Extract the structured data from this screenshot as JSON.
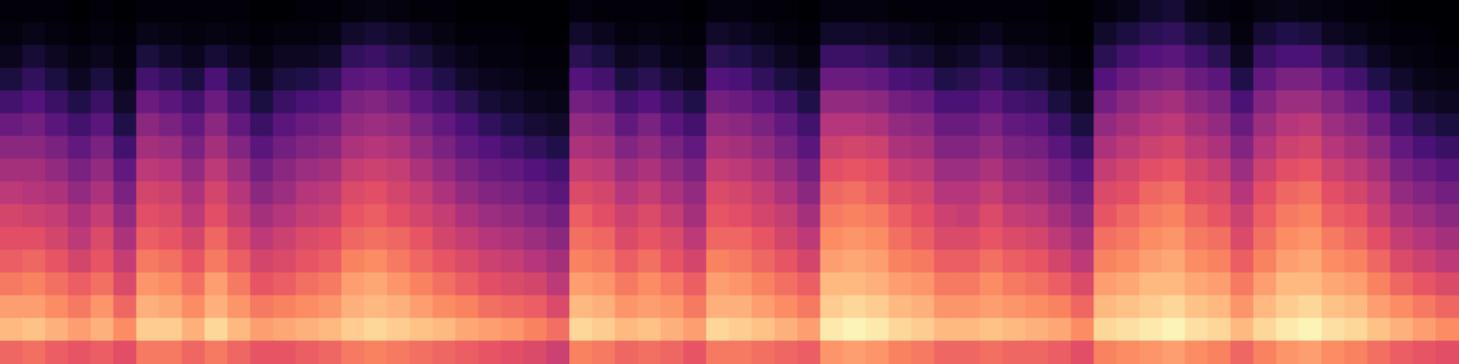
{
  "chart_data": {
    "type": "heatmap",
    "tick_labels": false,
    "zlim": [
      0,
      100
    ],
    "cells": [
      [
        68,
        86,
        80,
        72,
        66,
        62,
        58,
        52,
        46,
        40,
        32,
        22,
        12,
        5,
        2,
        1
      ],
      [
        70,
        88,
        80,
        74,
        68,
        62,
        56,
        50,
        46,
        40,
        34,
        26,
        18,
        10,
        4,
        1
      ],
      [
        66,
        84,
        76,
        70,
        64,
        58,
        54,
        48,
        42,
        36,
        28,
        20,
        12,
        6,
        2,
        1
      ],
      [
        64,
        80,
        72,
        66,
        58,
        52,
        48,
        42,
        36,
        30,
        22,
        14,
        6,
        3,
        1,
        0
      ],
      [
        66,
        84,
        78,
        70,
        64,
        60,
        54,
        48,
        42,
        36,
        28,
        20,
        12,
        5,
        2,
        1
      ],
      [
        62,
        76,
        68,
        60,
        54,
        48,
        42,
        36,
        30,
        22,
        14,
        8,
        4,
        2,
        1,
        0
      ],
      [
        72,
        90,
        84,
        78,
        72,
        66,
        62,
        58,
        52,
        46,
        40,
        32,
        22,
        12,
        4,
        1
      ],
      [
        72,
        90,
        82,
        76,
        70,
        64,
        60,
        56,
        50,
        44,
        36,
        28,
        18,
        8,
        3,
        1
      ],
      [
        68,
        84,
        76,
        70,
        64,
        58,
        52,
        48,
        42,
        36,
        30,
        22,
        12,
        5,
        2,
        1
      ],
      [
        72,
        92,
        84,
        80,
        72,
        68,
        62,
        58,
        52,
        46,
        40,
        32,
        24,
        10,
        3,
        1
      ],
      [
        68,
        86,
        78,
        72,
        66,
        60,
        54,
        50,
        44,
        38,
        30,
        22,
        14,
        6,
        2,
        1
      ],
      [
        64,
        80,
        72,
        64,
        58,
        52,
        46,
        40,
        34,
        28,
        20,
        12,
        6,
        3,
        1,
        0
      ],
      [
        64,
        82,
        74,
        66,
        60,
        56,
        50,
        44,
        40,
        34,
        28,
        20,
        12,
        6,
        2,
        0
      ],
      [
        66,
        84,
        76,
        70,
        64,
        60,
        54,
        50,
        44,
        38,
        32,
        24,
        14,
        6,
        2,
        1
      ],
      [
        68,
        86,
        78,
        72,
        66,
        62,
        56,
        52,
        46,
        40,
        34,
        26,
        18,
        8,
        3,
        1
      ],
      [
        72,
        90,
        84,
        80,
        74,
        68,
        64,
        60,
        54,
        48,
        42,
        36,
        28,
        18,
        8,
        2
      ],
      [
        74,
        92,
        86,
        82,
        76,
        70,
        66,
        62,
        56,
        50,
        44,
        38,
        30,
        20,
        10,
        3
      ],
      [
        72,
        90,
        84,
        78,
        72,
        68,
        62,
        58,
        54,
        48,
        42,
        34,
        26,
        16,
        8,
        2
      ],
      [
        70,
        88,
        80,
        74,
        68,
        64,
        58,
        54,
        48,
        42,
        36,
        28,
        20,
        12,
        5,
        1
      ],
      [
        68,
        86,
        76,
        70,
        64,
        58,
        54,
        48,
        42,
        36,
        30,
        22,
        14,
        7,
        3,
        1
      ],
      [
        66,
        82,
        74,
        66,
        60,
        54,
        48,
        42,
        36,
        30,
        24,
        16,
        8,
        4,
        1,
        0
      ],
      [
        64,
        80,
        70,
        62,
        56,
        50,
        44,
        38,
        32,
        26,
        18,
        10,
        5,
        2,
        1,
        0
      ],
      [
        62,
        78,
        68,
        60,
        54,
        48,
        42,
        36,
        30,
        22,
        14,
        8,
        4,
        2,
        1,
        0
      ],
      [
        60,
        74,
        66,
        58,
        50,
        44,
        38,
        32,
        26,
        18,
        10,
        5,
        2,
        1,
        0,
        0
      ],
      [
        56,
        70,
        60,
        52,
        46,
        40,
        34,
        28,
        22,
        14,
        8,
        4,
        2,
        1,
        0,
        0
      ],
      [
        74,
        92,
        86,
        80,
        74,
        70,
        66,
        60,
        54,
        48,
        42,
        34,
        26,
        16,
        8,
        2
      ],
      [
        72,
        90,
        84,
        78,
        72,
        68,
        62,
        58,
        52,
        46,
        40,
        32,
        22,
        12,
        5,
        1
      ],
      [
        68,
        86,
        78,
        72,
        66,
        60,
        56,
        50,
        44,
        38,
        30,
        22,
        12,
        6,
        2,
        1
      ],
      [
        70,
        88,
        80,
        76,
        70,
        64,
        60,
        54,
        48,
        42,
        36,
        26,
        16,
        8,
        3,
        1
      ],
      [
        68,
        84,
        78,
        72,
        64,
        60,
        54,
        48,
        42,
        36,
        28,
        20,
        10,
        4,
        2,
        1
      ],
      [
        64,
        80,
        72,
        66,
        58,
        52,
        46,
        42,
        36,
        30,
        22,
        14,
        6,
        3,
        1,
        0
      ],
      [
        72,
        92,
        84,
        80,
        74,
        68,
        64,
        60,
        54,
        48,
        42,
        34,
        26,
        16,
        8,
        2
      ],
      [
        72,
        90,
        84,
        78,
        72,
        68,
        62,
        58,
        52,
        46,
        40,
        32,
        24,
        14,
        6,
        2
      ],
      [
        70,
        88,
        80,
        74,
        68,
        64,
        58,
        54,
        48,
        42,
        36,
        28,
        18,
        10,
        4,
        1
      ],
      [
        68,
        84,
        76,
        70,
        64,
        58,
        54,
        48,
        42,
        36,
        30,
        22,
        12,
        6,
        2,
        1
      ],
      [
        66,
        80,
        72,
        66,
        58,
        52,
        46,
        40,
        34,
        28,
        22,
        14,
        8,
        3,
        1,
        0
      ],
      [
        78,
        96,
        90,
        86,
        80,
        76,
        72,
        68,
        62,
        56,
        50,
        42,
        32,
        20,
        8,
        2
      ],
      [
        80,
        98,
        92,
        86,
        82,
        78,
        74,
        70,
        64,
        58,
        50,
        42,
        32,
        20,
        8,
        2
      ],
      [
        78,
        96,
        90,
        84,
        80,
        76,
        72,
        66,
        62,
        56,
        48,
        40,
        30,
        18,
        7,
        2
      ],
      [
        74,
        92,
        86,
        80,
        74,
        70,
        66,
        60,
        54,
        48,
        42,
        34,
        24,
        12,
        5,
        1
      ],
      [
        72,
        90,
        84,
        78,
        72,
        66,
        62,
        58,
        52,
        46,
        40,
        32,
        22,
        10,
        4,
        1
      ],
      [
        68,
        86,
        78,
        72,
        66,
        60,
        56,
        50,
        44,
        38,
        32,
        24,
        14,
        6,
        2,
        1
      ],
      [
        68,
        86,
        78,
        72,
        66,
        60,
        54,
        50,
        44,
        38,
        32,
        24,
        16,
        8,
        3,
        1
      ],
      [
        70,
        88,
        80,
        76,
        70,
        64,
        60,
        54,
        48,
        42,
        36,
        28,
        20,
        12,
        5,
        1
      ],
      [
        68,
        86,
        78,
        72,
        66,
        60,
        54,
        48,
        42,
        36,
        30,
        22,
        14,
        6,
        2,
        1
      ],
      [
        68,
        84,
        76,
        70,
        64,
        58,
        52,
        46,
        40,
        34,
        28,
        20,
        12,
        5,
        2,
        1
      ],
      [
        66,
        82,
        74,
        66,
        58,
        52,
        46,
        40,
        34,
        28,
        20,
        12,
        6,
        3,
        1,
        0
      ],
      [
        62,
        76,
        68,
        60,
        52,
        46,
        40,
        34,
        28,
        20,
        12,
        6,
        3,
        1,
        0,
        0
      ],
      [
        74,
        92,
        86,
        80,
        74,
        70,
        64,
        60,
        54,
        48,
        42,
        34,
        26,
        16,
        8,
        2
      ],
      [
        76,
        94,
        88,
        82,
        76,
        72,
        68,
        62,
        58,
        52,
        46,
        40,
        32,
        22,
        12,
        4
      ],
      [
        78,
        96,
        90,
        86,
        80,
        76,
        72,
        68,
        62,
        56,
        50,
        44,
        36,
        26,
        16,
        8
      ],
      [
        80,
        98,
        92,
        86,
        82,
        78,
        74,
        70,
        64,
        58,
        52,
        46,
        38,
        28,
        18,
        10
      ],
      [
        76,
        94,
        88,
        82,
        76,
        72,
        68,
        62,
        58,
        52,
        46,
        40,
        32,
        22,
        12,
        4
      ],
      [
        74,
        92,
        86,
        80,
        74,
        70,
        64,
        60,
        54,
        48,
        42,
        36,
        28,
        16,
        8,
        2
      ],
      [
        68,
        86,
        78,
        72,
        66,
        60,
        56,
        50,
        44,
        38,
        32,
        24,
        14,
        6,
        2,
        1
      ],
      [
        74,
        92,
        86,
        80,
        74,
        70,
        66,
        62,
        56,
        50,
        44,
        38,
        30,
        20,
        10,
        3
      ],
      [
        78,
        96,
        90,
        86,
        80,
        76,
        72,
        68,
        62,
        56,
        50,
        44,
        36,
        24,
        14,
        4
      ],
      [
        80,
        98,
        92,
        86,
        82,
        78,
        74,
        70,
        64,
        58,
        52,
        44,
        36,
        24,
        12,
        3
      ],
      [
        76,
        94,
        88,
        82,
        76,
        72,
        66,
        62,
        56,
        50,
        44,
        38,
        28,
        16,
        6,
        2
      ],
      [
        74,
        92,
        86,
        80,
        74,
        68,
        64,
        58,
        52,
        46,
        40,
        32,
        22,
        12,
        4,
        1
      ],
      [
        70,
        88,
        80,
        74,
        68,
        62,
        56,
        52,
        46,
        40,
        32,
        24,
        14,
        6,
        2,
        1
      ],
      [
        66,
        84,
        76,
        68,
        60,
        54,
        48,
        42,
        36,
        30,
        22,
        14,
        8,
        3,
        1,
        0
      ],
      [
        64,
        80,
        72,
        64,
        56,
        50,
        44,
        38,
        32,
        24,
        16,
        8,
        4,
        2,
        1,
        0
      ],
      [
        62,
        76,
        68,
        60,
        52,
        46,
        40,
        34,
        28,
        20,
        12,
        6,
        3,
        1,
        0,
        0
      ]
    ]
  }
}
